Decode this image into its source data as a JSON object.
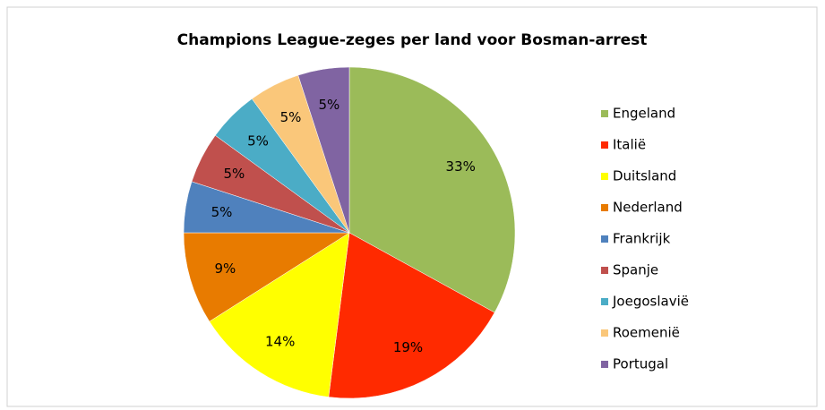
{
  "chart_data": {
    "type": "pie",
    "title": "Champions League-zeges per land voor Bosman-arrest",
    "categories": [
      "Engeland",
      "Italië",
      "Duitsland",
      "Nederland",
      "Frankrijk",
      "Spanje",
      "Joegoslavië",
      "Roemenië",
      "Portugal"
    ],
    "values": [
      33,
      19,
      14,
      9,
      5,
      5,
      5,
      5,
      5
    ],
    "value_labels": [
      "33%",
      "19%",
      "14%",
      "9%",
      "5%",
      "5%",
      "5%",
      "5%",
      "5%"
    ],
    "colors": [
      "#9bbb59",
      "#ff2a00",
      "#ffff00",
      "#e87b00",
      "#4f81bd",
      "#c0504d",
      "#4bacc6",
      "#fac77a",
      "#8064a2"
    ],
    "legend": "right"
  }
}
